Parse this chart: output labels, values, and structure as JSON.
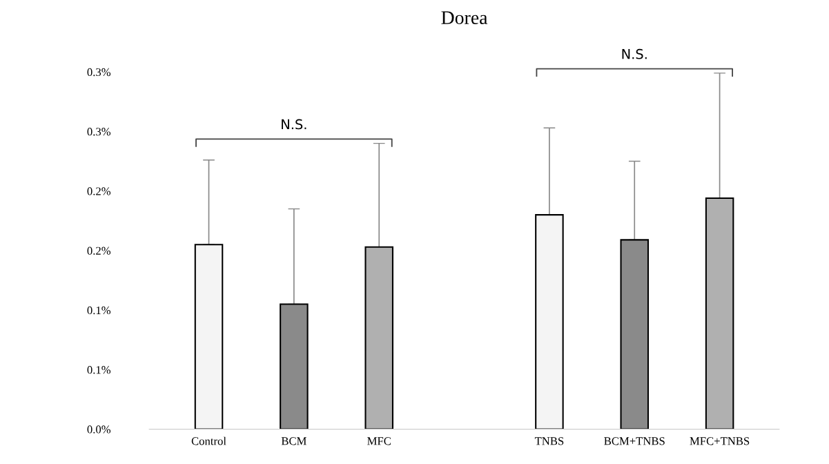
{
  "chart_data": {
    "type": "bar",
    "title": "Dorea",
    "categories": [
      "Control",
      "BCM",
      "MFC",
      null,
      "TNBS",
      "BCM+TNBS",
      "MFC+TNBS"
    ],
    "values": [
      0.155,
      0.105,
      0.153,
      null,
      0.18,
      0.159,
      0.194
    ],
    "errors": [
      [
        0.155,
        0.226
      ],
      [
        0.105,
        0.185
      ],
      [
        0.153,
        0.24
      ],
      null,
      [
        0.18,
        0.253
      ],
      [
        0.159,
        0.225
      ],
      [
        0.194,
        0.299
      ]
    ],
    "colors": [
      "#f4f4f4",
      "#8a8a8a",
      "#b0b0b0",
      null,
      "#f4f4f4",
      "#8a8a8a",
      "#b0b0b0"
    ],
    "ylim": [
      0,
      0.3
    ],
    "yticks": [
      {
        "value": 0,
        "label": "0.0%"
      },
      {
        "value": 0.05,
        "label": "0.1%"
      },
      {
        "value": 0.1,
        "label": "0.1%"
      },
      {
        "value": 0.15,
        "label": "0.2%"
      },
      {
        "value": 0.2,
        "label": "0.2%"
      },
      {
        "value": 0.25,
        "label": "0.3%"
      },
      {
        "value": 0.3,
        "label": "0.3%"
      }
    ],
    "annotations": [
      "N.S.",
      "N.S."
    ],
    "grid": false,
    "legend": false
  }
}
